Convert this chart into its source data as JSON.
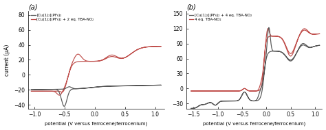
{
  "panel_a": {
    "title": "(a)",
    "xlabel": "potential (V versus ferrocene/ferrocenium)",
    "ylabel": "current (μA)",
    "xlim": [
      -1.1,
      1.15
    ],
    "ylim": [
      -45,
      85
    ],
    "yticks": [
      -40,
      -20,
      0,
      20,
      40,
      60,
      80
    ],
    "xticks": [
      -1.0,
      -0.5,
      0.0,
      0.5,
      1.0
    ],
    "legend": [
      "[Cu(1)₂](PF₆)₂",
      "[Cu(1)₂](PF₆)₂ + 2 eq. TBA-NO₂"
    ],
    "colors": [
      "#555555",
      "#c0504d"
    ]
  },
  "panel_b": {
    "title": "(b)",
    "xlabel": "potential (V versus ferrocene/ferrocenium)",
    "ylabel": "",
    "xlim": [
      -1.65,
      1.15
    ],
    "ylim": [
      -40,
      155
    ],
    "yticks": [
      -30,
      0,
      30,
      60,
      90,
      120,
      150
    ],
    "xticks": [
      -1.5,
      -1.0,
      -0.5,
      0.0,
      0.5,
      1.0
    ],
    "legend": [
      "[Cu(1)₂](PF₆)₂ + 4 eq. TBA-NO₂",
      "4 eq. TBA-NO₂"
    ],
    "colors": [
      "#555555",
      "#c0504d"
    ]
  }
}
